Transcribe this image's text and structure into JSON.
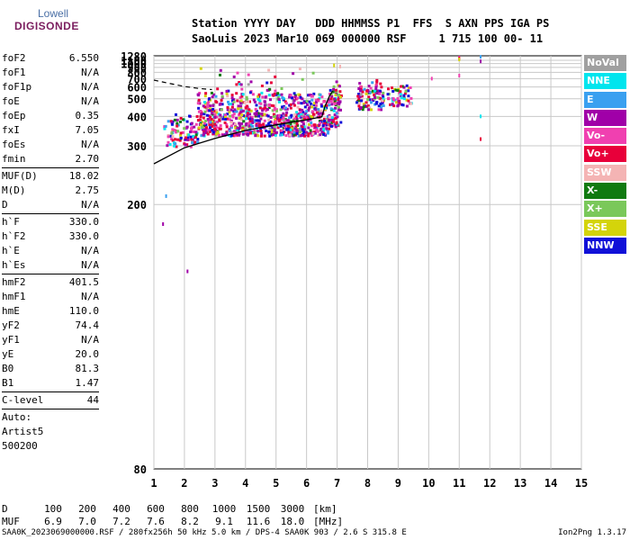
{
  "logo": {
    "line1": "Lowell",
    "line2": "DIGISONDE"
  },
  "header": {
    "line1": "Station YYYY DAY   DDD HHMMSS P1  FFS  S AXN PPS IGA PS",
    "line2": "SaoLuis 2023 Mar10 069 000000 RSF     1 715 100 00- 11"
  },
  "params": {
    "group1": [
      {
        "name": "foF2",
        "value": "6.550"
      },
      {
        "name": "foF1",
        "value": "N/A"
      },
      {
        "name": "foF1p",
        "value": "N/A"
      },
      {
        "name": "foE",
        "value": "N/A"
      },
      {
        "name": "foEp",
        "value": "0.35"
      },
      {
        "name": "fxI",
        "value": "7.05"
      },
      {
        "name": "foEs",
        "value": "N/A"
      },
      {
        "name": "fmin",
        "value": "2.70"
      }
    ],
    "group2": [
      {
        "name": "MUF(D)",
        "value": "18.02"
      },
      {
        "name": "M(D)",
        "value": "2.75"
      },
      {
        "name": "D",
        "value": "N/A"
      }
    ],
    "group3": [
      {
        "name": "h`F",
        "value": "330.0"
      },
      {
        "name": "h`F2",
        "value": "330.0"
      },
      {
        "name": "h`E",
        "value": "N/A"
      },
      {
        "name": "h`Es",
        "value": "N/A"
      }
    ],
    "group4": [
      {
        "name": "hmF2",
        "value": "401.5"
      },
      {
        "name": "hmF1",
        "value": "N/A"
      },
      {
        "name": "hmE",
        "value": "110.0"
      },
      {
        "name": "yF2",
        "value": "74.4"
      },
      {
        "name": "yF1",
        "value": "N/A"
      },
      {
        "name": "yE",
        "value": "20.0"
      },
      {
        "name": "B0",
        "value": "81.3"
      },
      {
        "name": "B1",
        "value": "1.47"
      }
    ],
    "clevel": {
      "name": "C-level",
      "value": "44"
    },
    "auto": [
      "Auto:",
      "Artist5",
      "500200"
    ]
  },
  "legend": [
    {
      "label": "NoVal",
      "color": "#a0a0a0"
    },
    {
      "label": "NNE",
      "color": "#00e5ee"
    },
    {
      "label": "E",
      "color": "#3aa0f0"
    },
    {
      "label": "W",
      "color": "#a000a8"
    },
    {
      "label": "Vo-",
      "color": "#f040b0"
    },
    {
      "label": "Vo+",
      "color": "#e8003a"
    },
    {
      "label": "SSW",
      "color": "#f4b4b4"
    },
    {
      "label": "X-",
      "color": "#107a10"
    },
    {
      "label": "X+",
      "color": "#7ac85a"
    },
    {
      "label": "SSE",
      "color": "#d4d40a"
    },
    {
      "label": "NNW",
      "color": "#1010d8"
    }
  ],
  "chart_data": {
    "type": "scatter",
    "title": "",
    "xlabel": "",
    "ylabel": "",
    "xlim": [
      1,
      15
    ],
    "ylim": [
      80,
      1280
    ],
    "y_scale": "reciprocal",
    "grid": true,
    "x_ticks": [
      1,
      2,
      3,
      4,
      5,
      6,
      7,
      8,
      9,
      10,
      11,
      12,
      13,
      14,
      15
    ],
    "y_ticks": [
      80,
      200,
      300,
      400,
      500,
      600,
      700,
      800,
      900,
      1000,
      1100,
      1280
    ],
    "clusters": [
      {
        "x": [
          1.3,
          2.4
        ],
        "y": [
          300,
          420
        ],
        "density": 0.5
      },
      {
        "x": [
          2.4,
          6.7
        ],
        "y": [
          330,
          560
        ],
        "density": 0.85
      },
      {
        "x": [
          3.0,
          5.2
        ],
        "y": [
          540,
          700
        ],
        "density": 0.15
      },
      {
        "x": [
          6.7,
          7.1
        ],
        "y": [
          360,
          690
        ],
        "density": 0.8
      },
      {
        "x": [
          7.6,
          8.5
        ],
        "y": [
          440,
          700
        ],
        "density": 0.75
      },
      {
        "x": [
          8.6,
          9.4
        ],
        "y": [
          460,
          640
        ],
        "density": 0.6
      },
      {
        "x": [
          2.3,
          6.5
        ],
        "y": [
          700,
          960
        ],
        "density": 0.04
      }
    ],
    "points": [
      {
        "x": 11.0,
        "y": 1200,
        "type": "Vo-"
      },
      {
        "x": 11.0,
        "y": 1170,
        "type": "Vo+"
      },
      {
        "x": 11.0,
        "y": 1130,
        "type": "SSE"
      },
      {
        "x": 11.7,
        "y": 1235,
        "type": "E"
      },
      {
        "x": 11.7,
        "y": 1065,
        "type": "W"
      },
      {
        "x": 11.0,
        "y": 745,
        "type": "Vo-"
      },
      {
        "x": 11.7,
        "y": 400,
        "type": "NNE"
      },
      {
        "x": 11.7,
        "y": 318,
        "type": "Vo+"
      },
      {
        "x": 10.1,
        "y": 700,
        "type": "Vo-"
      },
      {
        "x": 1.4,
        "y": 210,
        "type": "E"
      },
      {
        "x": 1.3,
        "y": 180,
        "type": "W"
      },
      {
        "x": 2.1,
        "y": 145,
        "type": "W"
      },
      {
        "x": 6.9,
        "y": 950,
        "type": "SSE"
      },
      {
        "x": 7.1,
        "y": 920,
        "type": "SSW"
      }
    ],
    "profile_solid": {
      "x": [
        1.0,
        2.0,
        3.0,
        4.0,
        5.0,
        6.0,
        6.5,
        6.6,
        6.75,
        6.85
      ],
      "y": [
        260,
        295,
        320,
        345,
        365,
        385,
        398,
        450,
        520,
        560
      ]
    },
    "profile_dashed": {
      "x": [
        1.0,
        1.5,
        2.0,
        2.5,
        2.9
      ],
      "y": [
        680,
        640,
        605,
        585,
        575
      ]
    }
  },
  "footer": {
    "d_label": "D",
    "d_values": [
      "100",
      "200",
      "400",
      "600",
      "800",
      "1000",
      "1500",
      "3000"
    ],
    "d_unit": "[km]",
    "muf_label": "MUF",
    "muf_values": [
      "6.9",
      "7.0",
      "7.2",
      "7.6",
      "8.2",
      "9.1",
      "11.6",
      "18.0"
    ],
    "muf_unit": "[MHz]",
    "info": "SAA0K_2023069000000.RSF / 280fx256h 50 kHz 5.0 km / DPS-4 SAA0K 903 / 2.6 S 315.8 E",
    "version": "Ion2Png 1.3.17"
  }
}
